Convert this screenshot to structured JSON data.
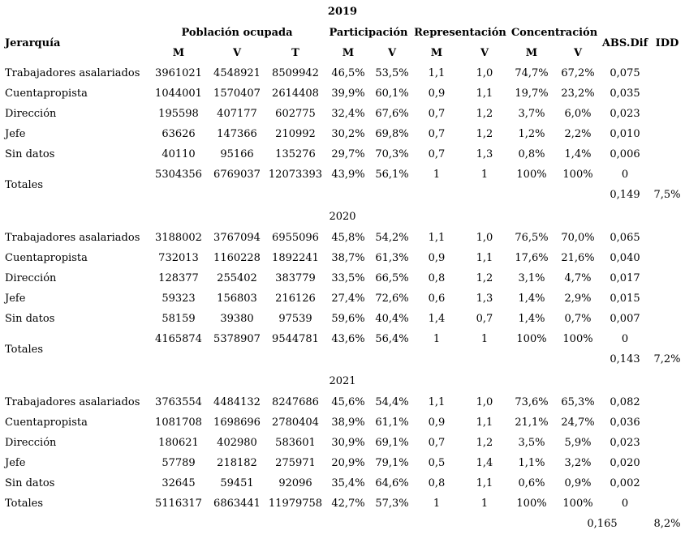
{
  "table": {
    "row_header_label": "Jerarquía",
    "column_groups": [
      {
        "label": "Población ocupada",
        "subcols": [
          "M",
          "V",
          "T"
        ]
      },
      {
        "label": "Participación",
        "subcols": [
          "M",
          "V"
        ]
      },
      {
        "label": "Representación",
        "subcols": [
          "M",
          "V"
        ]
      },
      {
        "label": "Concentración",
        "subcols": [
          "M",
          "V"
        ]
      },
      {
        "label": "ABS.Dif"
      },
      {
        "label": "IDD"
      }
    ],
    "sections": [
      {
        "year": "2019",
        "rows": [
          {
            "label": "Trabajadores asalariados",
            "values": [
              "3961021",
              "4548921",
              "8509942",
              "46,5%",
              "53,5%",
              "1,1",
              "1,0",
              "74,7%",
              "67,2%",
              "0,075"
            ]
          },
          {
            "label": "Cuentapropista",
            "values": [
              "1044001",
              "1570407",
              "2614408",
              "39,9%",
              "60,1%",
              "0,9",
              "1,1",
              "19,7%",
              "23,2%",
              "0,035"
            ]
          },
          {
            "label": "Dirección",
            "values": [
              "195598",
              "407177",
              "602775",
              "32,4%",
              "67,6%",
              "0,7",
              "1,2",
              "3,7%",
              "6,0%",
              "0,023"
            ]
          },
          {
            "label": "Jefe",
            "values": [
              "63626",
              "147366",
              "210992",
              "30,2%",
              "69,8%",
              "0,7",
              "1,2",
              "1,2%",
              "2,2%",
              "0,010"
            ]
          },
          {
            "label": "Sin datos",
            "values": [
              "40110",
              "95166",
              "135276",
              "29,7%",
              "70,3%",
              "0,7",
              "1,3",
              "0,8%",
              "1,4%",
              "0,006"
            ]
          }
        ],
        "totals": {
          "label": "Totales",
          "values": [
            "5304356",
            "6769037",
            "12073393",
            "43,9%",
            "56,1%",
            "1",
            "1",
            "100%",
            "100%",
            "0"
          ]
        },
        "summary": {
          "abs_dif": "0,149",
          "idd": "7,5%"
        }
      },
      {
        "year": "2020",
        "rows": [
          {
            "label": "Trabajadores asalariados",
            "values": [
              "3188002",
              "3767094",
              "6955096",
              "45,8%",
              "54,2%",
              "1,1",
              "1,0",
              "76,5%",
              "70,0%",
              "0,065"
            ]
          },
          {
            "label": "Cuentapropista",
            "values": [
              "732013",
              "1160228",
              "1892241",
              "38,7%",
              "61,3%",
              "0,9",
              "1,1",
              "17,6%",
              "21,6%",
              "0,040"
            ]
          },
          {
            "label": "Dirección",
            "values": [
              "128377",
              "255402",
              "383779",
              "33,5%",
              "66,5%",
              "0,8",
              "1,2",
              "3,1%",
              "4,7%",
              "0,017"
            ]
          },
          {
            "label": "Jefe",
            "values": [
              "59323",
              "156803",
              "216126",
              "27,4%",
              "72,6%",
              "0,6",
              "1,3",
              "1,4%",
              "2,9%",
              "0,015"
            ]
          },
          {
            "label": "Sin datos",
            "values": [
              "58159",
              "39380",
              "97539",
              "59,6%",
              "40,4%",
              "1,4",
              "0,7",
              "1,4%",
              "0,7%",
              "0,007"
            ]
          }
        ],
        "totals": {
          "label": "Totales",
          "values": [
            "4165874",
            "5378907",
            "9544781",
            "43,6%",
            "56,4%",
            "1",
            "1",
            "100%",
            "100%",
            "0"
          ]
        },
        "summary": {
          "abs_dif": "0,143",
          "idd": "7,2%"
        }
      },
      {
        "year": "2021",
        "rows": [
          {
            "label": "Trabajadores asalariados",
            "values": [
              "3763554",
              "4484132",
              "8247686",
              "45,6%",
              "54,4%",
              "1,1",
              "1,0",
              "73,6%",
              "65,3%",
              "0,082"
            ]
          },
          {
            "label": "Cuentapropista",
            "values": [
              "1081708",
              "1698696",
              "2780404",
              "38,9%",
              "61,1%",
              "0,9",
              "1,1",
              "21,1%",
              "24,7%",
              "0,036"
            ]
          },
          {
            "label": "Dirección",
            "values": [
              "180621",
              "402980",
              "583601",
              "30,9%",
              "69,1%",
              "0,7",
              "1,2",
              "3,5%",
              "5,9%",
              "0,023"
            ]
          },
          {
            "label": "Jefe",
            "values": [
              "57789",
              "218182",
              "275971",
              "20,9%",
              "79,1%",
              "0,5",
              "1,4",
              "1,1%",
              "3,2%",
              "0,020"
            ]
          },
          {
            "label": "Sin datos",
            "values": [
              "32645",
              "59451",
              "92096",
              "35,4%",
              "64,6%",
              "0,8",
              "1,1",
              "0,6%",
              "0,9%",
              "0,002"
            ]
          }
        ],
        "totals": {
          "label": "Totales",
          "values": [
            "5116317",
            "6863441",
            "11979758",
            "42,7%",
            "57,3%",
            "1",
            "1",
            "100%",
            "100%",
            "0"
          ]
        },
        "summary": {
          "abs_dif": "0,165",
          "idd": "8,2%"
        }
      }
    ]
  }
}
